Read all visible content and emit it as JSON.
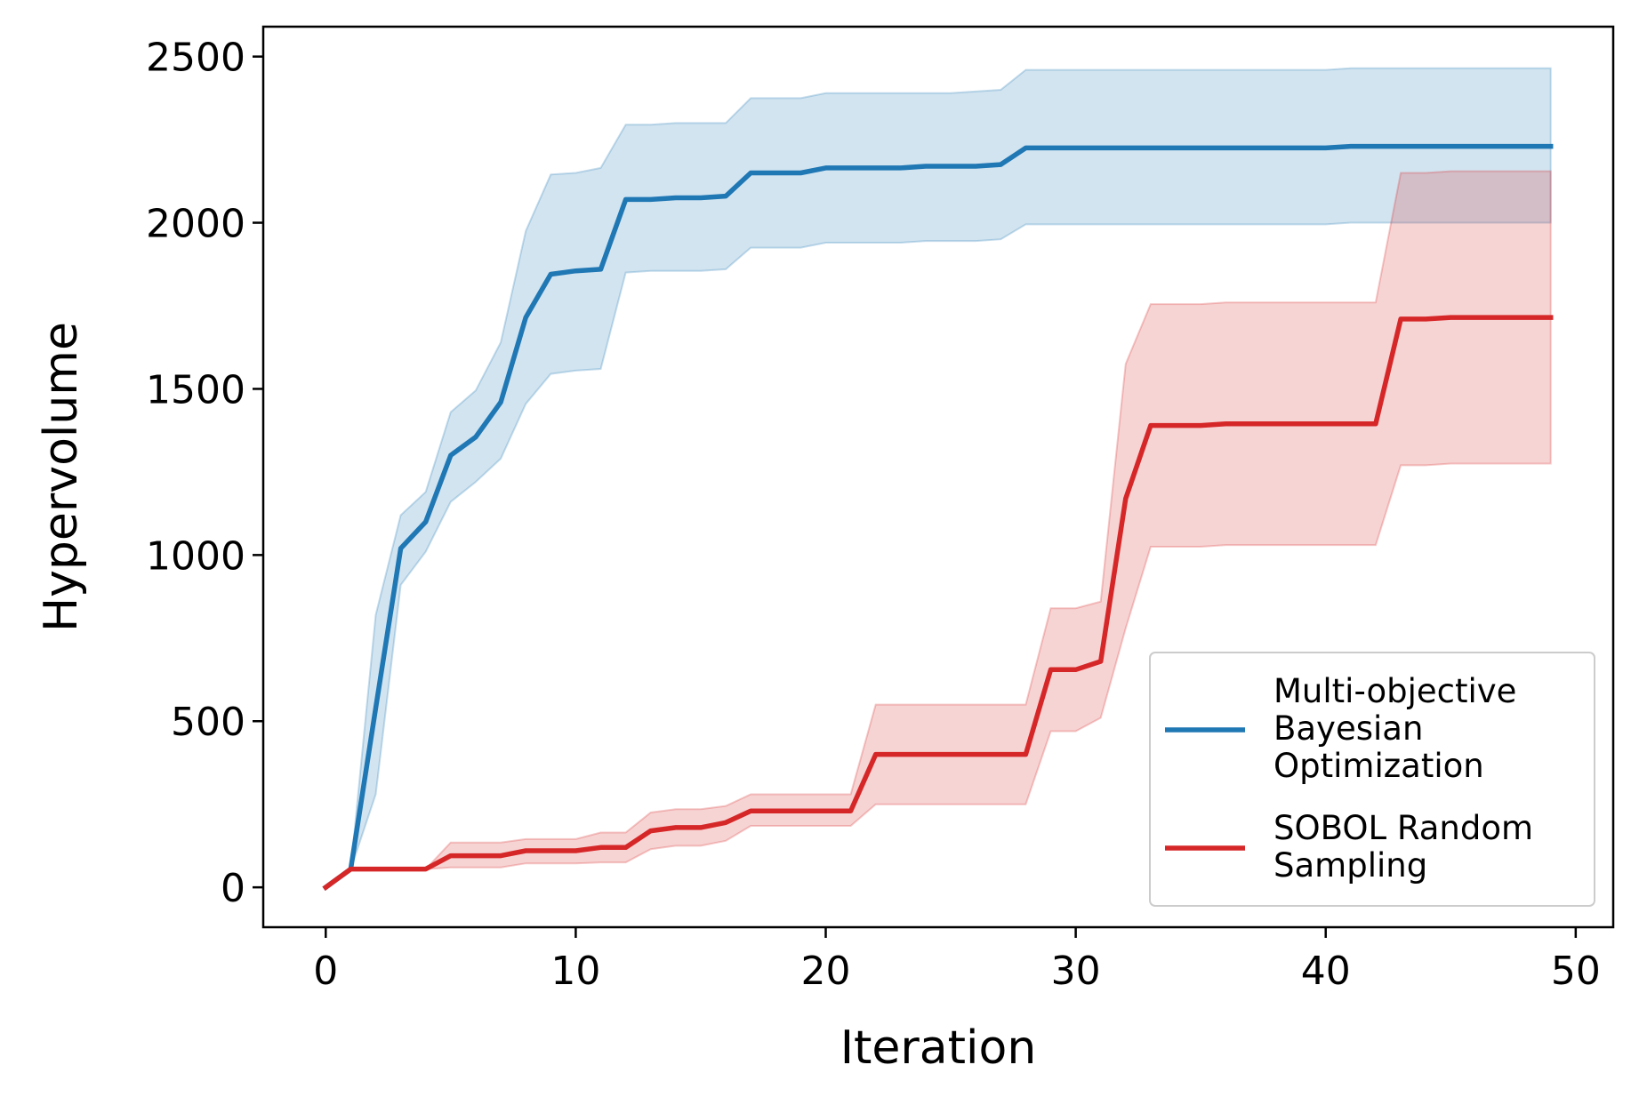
{
  "chart_data": {
    "type": "line",
    "title": "",
    "xlabel": "Iteration",
    "ylabel": "Hypervolume",
    "xlim": [
      -2.5,
      51.5
    ],
    "ylim": [
      -120,
      2590
    ],
    "xticks": [
      0,
      10,
      20,
      30,
      40,
      50
    ],
    "yticks": [
      0,
      500,
      1000,
      1500,
      2000,
      2500
    ],
    "xtick_labels": [
      "0",
      "10",
      "20",
      "30",
      "40",
      "50"
    ],
    "ytick_labels": [
      "0",
      "500",
      "1000",
      "1500",
      "2000",
      "2500"
    ],
    "grid": false,
    "legend_position": "lower-right",
    "x": [
      0,
      1,
      2,
      3,
      4,
      5,
      6,
      7,
      8,
      9,
      10,
      11,
      12,
      13,
      14,
      15,
      16,
      17,
      18,
      19,
      20,
      21,
      22,
      23,
      24,
      25,
      26,
      27,
      28,
      29,
      30,
      31,
      32,
      33,
      34,
      35,
      36,
      37,
      38,
      39,
      40,
      41,
      42,
      43,
      44,
      45,
      46,
      47,
      48,
      49
    ],
    "series": [
      {
        "name": "Multi-objective Bayesian Optimization",
        "legend_lines": [
          "Multi-objective",
          "Bayesian",
          "Optimization"
        ],
        "color": "#1f77b4",
        "band_color": "#1f77b4",
        "mean": [
          0,
          55,
          540,
          1020,
          1100,
          1300,
          1355,
          1460,
          1715,
          1845,
          1855,
          1860,
          2070,
          2070,
          2075,
          2075,
          2080,
          2150,
          2150,
          2150,
          2165,
          2165,
          2165,
          2165,
          2170,
          2170,
          2170,
          2175,
          2225,
          2225,
          2225,
          2225,
          2225,
          2225,
          2225,
          2225,
          2225,
          2225,
          2225,
          2225,
          2225,
          2230,
          2230,
          2230,
          2230,
          2230,
          2230,
          2230,
          2230,
          2230
        ],
        "lower": [
          0,
          55,
          280,
          910,
          1010,
          1160,
          1220,
          1290,
          1455,
          1545,
          1555,
          1560,
          1850,
          1855,
          1855,
          1855,
          1860,
          1925,
          1925,
          1925,
          1940,
          1940,
          1940,
          1940,
          1945,
          1945,
          1945,
          1950,
          1995,
          1995,
          1995,
          1995,
          1995,
          1995,
          1995,
          1995,
          1995,
          1995,
          1995,
          1995,
          1995,
          2000,
          2000,
          2000,
          2000,
          2000,
          2000,
          2000,
          2000,
          2000
        ],
        "upper": [
          0,
          55,
          820,
          1120,
          1190,
          1430,
          1495,
          1640,
          1975,
          2145,
          2150,
          2165,
          2295,
          2295,
          2300,
          2300,
          2300,
          2375,
          2375,
          2375,
          2390,
          2390,
          2390,
          2390,
          2390,
          2390,
          2395,
          2400,
          2460,
          2460,
          2460,
          2460,
          2460,
          2460,
          2460,
          2460,
          2460,
          2460,
          2460,
          2460,
          2460,
          2465,
          2465,
          2465,
          2465,
          2465,
          2465,
          2465,
          2465,
          2465
        ]
      },
      {
        "name": "SOBOL Random Sampling",
        "legend_lines": [
          "SOBOL Random",
          "Sampling"
        ],
        "color": "#d62728",
        "band_color": "#d62728",
        "mean": [
          0,
          55,
          55,
          55,
          55,
          95,
          95,
          95,
          110,
          110,
          110,
          120,
          120,
          170,
          180,
          180,
          195,
          230,
          230,
          230,
          230,
          230,
          400,
          400,
          400,
          400,
          400,
          400,
          400,
          655,
          655,
          680,
          1170,
          1390,
          1390,
          1390,
          1395,
          1395,
          1395,
          1395,
          1395,
          1395,
          1395,
          1710,
          1710,
          1715,
          1715,
          1715,
          1715,
          1715
        ],
        "lower": [
          0,
          55,
          55,
          55,
          55,
          60,
          60,
          60,
          72,
          72,
          72,
          75,
          75,
          115,
          125,
          125,
          140,
          185,
          185,
          185,
          185,
          185,
          250,
          250,
          250,
          250,
          250,
          250,
          250,
          470,
          470,
          510,
          780,
          1025,
          1025,
          1025,
          1030,
          1030,
          1030,
          1030,
          1030,
          1030,
          1030,
          1270,
          1270,
          1275,
          1275,
          1275,
          1275,
          1275
        ],
        "upper": [
          0,
          55,
          55,
          55,
          55,
          135,
          135,
          135,
          145,
          145,
          145,
          165,
          165,
          225,
          235,
          235,
          245,
          280,
          280,
          280,
          280,
          280,
          550,
          550,
          550,
          550,
          550,
          550,
          550,
          840,
          840,
          860,
          1575,
          1755,
          1755,
          1755,
          1760,
          1760,
          1760,
          1760,
          1760,
          1760,
          1760,
          2150,
          2150,
          2155,
          2155,
          2155,
          2155,
          2155
        ]
      }
    ]
  }
}
